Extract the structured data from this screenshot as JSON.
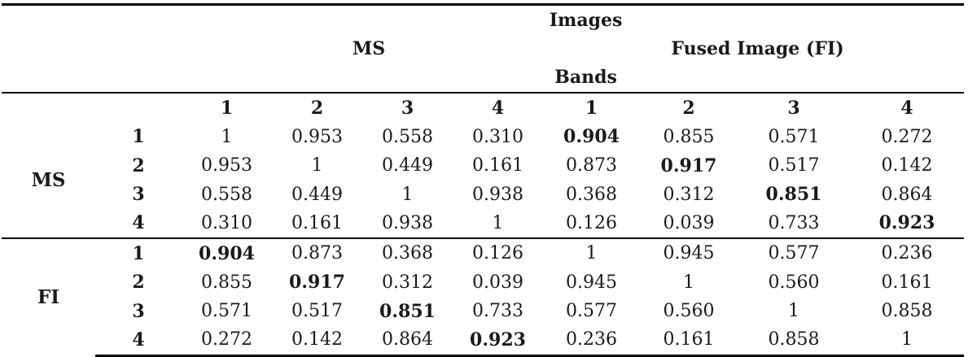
{
  "header": {
    "images": "Images",
    "ms": "MS",
    "fused": "Fused Image (FI)",
    "bands": "Bands"
  },
  "column_bands": [
    "1",
    "2",
    "3",
    "4",
    "1",
    "2",
    "3",
    "4"
  ],
  "groups": [
    {
      "label": "MS",
      "rows": [
        {
          "band": "1",
          "values": [
            "1",
            "0.953",
            "0.558",
            "0.310",
            "0.904",
            "0.855",
            "0.571",
            "0.272"
          ],
          "bold": [
            4
          ]
        },
        {
          "band": "2",
          "values": [
            "0.953",
            "1",
            "0.449",
            "0.161",
            "0.873",
            "0.917",
            "0.517",
            "0.142"
          ],
          "bold": [
            5
          ]
        },
        {
          "band": "3",
          "values": [
            "0.558",
            "0.449",
            "1",
            "0.938",
            "0.368",
            "0.312",
            "0.851",
            "0.864"
          ],
          "bold": [
            6
          ]
        },
        {
          "band": "4",
          "values": [
            "0.310",
            "0.161",
            "0.938",
            "1",
            "0.126",
            "0.039",
            "0.733",
            "0.923"
          ],
          "bold": [
            7
          ]
        }
      ]
    },
    {
      "label": "FI",
      "rows": [
        {
          "band": "1",
          "values": [
            "0.904",
            "0.873",
            "0.368",
            "0.126",
            "1",
            "0.945",
            "0.577",
            "0.236"
          ],
          "bold": [
            0
          ]
        },
        {
          "band": "2",
          "values": [
            "0.855",
            "0.917",
            "0.312",
            "0.039",
            "0.945",
            "1",
            "0.560",
            "0.161"
          ],
          "bold": [
            1
          ]
        },
        {
          "band": "3",
          "values": [
            "0.571",
            "0.517",
            "0.851",
            "0.733",
            "0.577",
            "0.560",
            "1",
            "0.858"
          ],
          "bold": [
            2
          ]
        },
        {
          "band": "4",
          "values": [
            "0.272",
            "0.142",
            "0.864",
            "0.923",
            "0.236",
            "0.161",
            "0.858",
            "1"
          ],
          "bold": [
            3
          ]
        }
      ]
    }
  ]
}
